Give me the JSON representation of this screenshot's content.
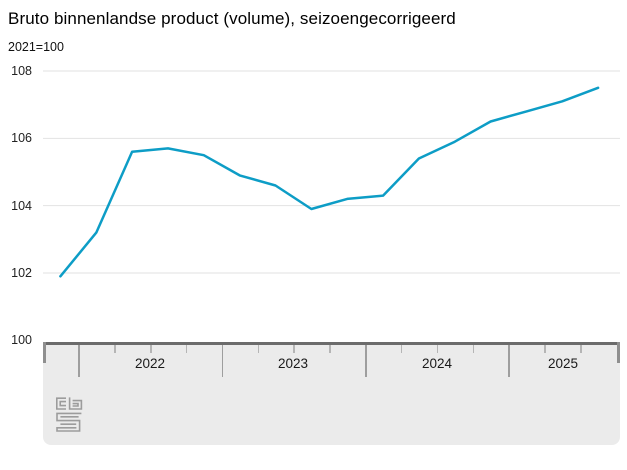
{
  "header": {
    "title": "Bruto binnenlandse product (volume), seizoengecorrigeerd",
    "subtitle": "2021=100"
  },
  "chart_data": {
    "type": "line",
    "title": "Bruto binnenlandse product (volume), seizoengecorrigeerd",
    "subtitle": "2021=100",
    "x": [
      "2021 Q4",
      "2022 Q1",
      "2022 Q2",
      "2022 Q3",
      "2022 Q4",
      "2023 Q1",
      "2023 Q2",
      "2023 Q3",
      "2023 Q4",
      "2024 Q1",
      "2024 Q2",
      "2024 Q3",
      "2024 Q4",
      "2025 Q1",
      "2025 Q2",
      "2025 Q3"
    ],
    "values": [
      101.9,
      103.2,
      105.6,
      105.7,
      105.5,
      104.9,
      104.6,
      103.9,
      104.2,
      104.3,
      105.4,
      105.9,
      106.5,
      106.8,
      107.1,
      107.5
    ],
    "ylim": [
      100,
      108
    ],
    "yticks": [
      108,
      106,
      104,
      102,
      100
    ],
    "xticks_years": [
      "2022",
      "2023",
      "2024",
      "2025"
    ],
    "grid": true,
    "legend": "none"
  },
  "colors": {
    "line": "#0d9dc6",
    "grid": "#e2e2e2",
    "panel_bg": "#ebebeb",
    "brush_track": "#6b6b6b"
  },
  "footer": {
    "logo": "cbs-logo"
  }
}
